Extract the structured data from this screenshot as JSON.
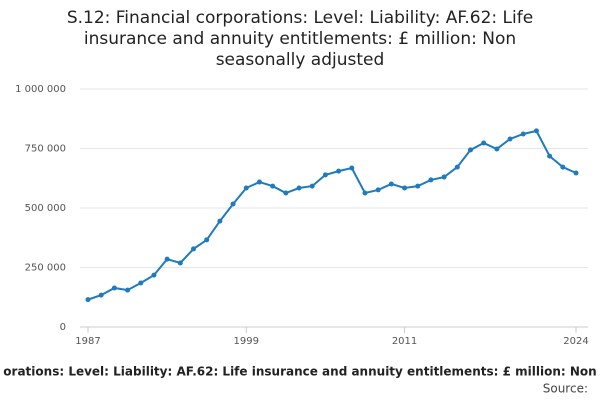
{
  "chart_data": {
    "type": "line",
    "title": "S.12: Financial corporations: Level: Liability: AF.62: Life insurance and annuity entitlements: £ million: Non seasonally adjusted",
    "x_label": "orations: Level: Liability: AF.62: Life insurance and annuity entitlements: £ million: Non",
    "source": "Source:",
    "x": [
      1987,
      1988,
      1989,
      1990,
      1991,
      1992,
      1993,
      1994,
      1995,
      1996,
      1997,
      1998,
      1999,
      2000,
      2001,
      2002,
      2003,
      2004,
      2005,
      2006,
      2007,
      2008,
      2009,
      2010,
      2011,
      2012,
      2013,
      2014,
      2015,
      2016,
      2017,
      2018,
      2019,
      2020,
      2021,
      2022,
      2023,
      2024
    ],
    "series": [
      {
        "color": "#1f7bbd",
        "values": [
          115000,
          134000,
          164000,
          155000,
          185000,
          218000,
          285000,
          269000,
          328000,
          366000,
          445000,
          517000,
          584000,
          609000,
          592000,
          563000,
          584000,
          592000,
          639000,
          655000,
          668000,
          563000,
          576000,
          601000,
          584000,
          592000,
          618000,
          630000,
          672000,
          744000,
          773000,
          748000,
          790000,
          811000,
          824000,
          718000,
          672000,
          647000
        ]
      }
    ],
    "xlim": [
      1987,
      2024
    ],
    "xticks": [
      1987,
      1999,
      2011,
      2024
    ],
    "ylim": [
      0,
      1000000
    ],
    "yticks": [
      0,
      {
        "value": 250000,
        "label": "250 000"
      },
      {
        "value": 500000,
        "label": "500 000"
      },
      {
        "value": 750000,
        "label": "750 000"
      },
      {
        "value": 1000000,
        "label": "1 000 000"
      }
    ],
    "grid": true
  }
}
